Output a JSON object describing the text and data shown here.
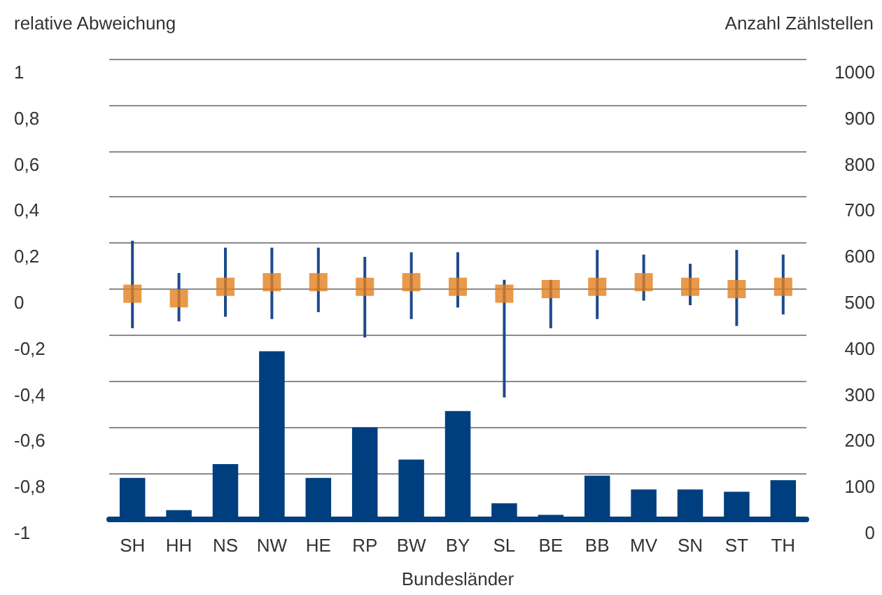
{
  "chart_data": {
    "type": "bar",
    "ylabel": "relative Abweichung",
    "y2label": "Anzahl Zählstellen",
    "xlabel": "Bundesländer",
    "categories": [
      "SH",
      "HH",
      "NS",
      "NW",
      "HE",
      "RP",
      "BW",
      "BY",
      "SL",
      "BE",
      "BB",
      "MV",
      "SN",
      "ST",
      "TH"
    ],
    "series": [
      {
        "axis": "y2",
        "color": "#003f7f",
        "values": [
          90,
          20,
          120,
          365,
          90,
          200,
          130,
          235,
          35,
          10,
          95,
          65,
          65,
          60,
          85
        ]
      },
      {
        "type": "scatter",
        "color": "#e2801e",
        "values": [
          -0.02,
          -0.04,
          0.01,
          0.03,
          0.03,
          0.01,
          0.03,
          0.01,
          -0.02,
          0,
          0.01,
          0.03,
          0.01,
          0,
          0.01
        ],
        "errors": [
          [
            -0.17,
            0.21
          ],
          [
            -0.14,
            0.07
          ],
          [
            -0.12,
            0.18
          ],
          [
            -0.13,
            0.18
          ],
          [
            -0.1,
            0.18
          ],
          [
            -0.21,
            0.14
          ],
          [
            -0.13,
            0.16
          ],
          [
            -0.08,
            0.16
          ],
          [
            -0.47,
            0.04
          ],
          [
            -0.17,
            0.04
          ],
          [
            -0.13,
            0.17
          ],
          [
            -0.05,
            0.15
          ],
          [
            -0.07,
            0.11
          ],
          [
            -0.16,
            0.17
          ],
          [
            -0.11,
            0.15
          ]
        ]
      }
    ],
    "ylim": [
      -1,
      1
    ],
    "yticks": [
      {
        "value": -1,
        "label": "-1"
      },
      {
        "value": -0.8,
        "label": "-0,8"
      },
      {
        "value": -0.6,
        "label": "-0,6"
      },
      {
        "value": -0.4,
        "label": "-0,4"
      },
      {
        "value": -0.2,
        "label": "-0,2"
      },
      {
        "value": 0,
        "label": "0"
      },
      {
        "value": 0.2,
        "label": "0,2"
      },
      {
        "value": 0.4,
        "label": "0,4"
      },
      {
        "value": 0.6,
        "label": "0,6"
      },
      {
        "value": 0.8,
        "label": "0,8"
      },
      {
        "value": 1,
        "label": "1"
      }
    ],
    "y2lim": [
      0,
      1000
    ],
    "y2ticks": [
      0,
      100,
      200,
      300,
      400,
      500,
      600,
      700,
      800,
      900,
      1000
    ],
    "grid": "y",
    "marker": "square"
  }
}
